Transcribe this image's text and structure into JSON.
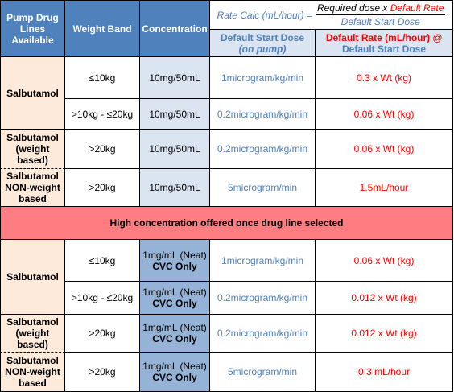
{
  "header": {
    "drug_lines": "Pump Drug Lines Available",
    "weight_band": "Weight Band",
    "concentration": "Concentration",
    "rate_calc_prefix": "Rate Calc (mL/hour) =",
    "rate_calc_numerator": "Required dose x",
    "rate_calc_numerator_red": "Default Rate",
    "rate_calc_denominator": "Default Start Dose",
    "default_start_dose": "Default Start Dose",
    "default_start_dose_note": "(on pump)",
    "default_rate_line1": "Default Rate (mL/hour) @",
    "default_rate_line2": "Default Start Dose"
  },
  "sections": [
    {
      "rows": [
        {
          "drug": "Salbutamol",
          "weight": "≤10kg",
          "conc": "10mg/50mL",
          "dose": "1microgram/kg/min",
          "rate": "0.3 x Wt (kg)"
        },
        {
          "drug": "",
          "weight": ">10kg - ≤20kg",
          "conc": "10mg/50mL",
          "dose": "0.2microgram/kg/min",
          "rate": "0.06 x Wt (kg)"
        },
        {
          "drug": "Salbutamol (weight based)",
          "weight": ">20kg",
          "conc": "10mg/50mL",
          "dose": "0.2microgram/kg/min",
          "rate": "0.06 x Wt (kg)"
        },
        {
          "drug": "Salbutamol NON-weight based",
          "weight": ">20kg",
          "conc": "10mg/50mL",
          "dose": "5microgram/min",
          "rate": "1.5mL/hour"
        }
      ]
    },
    {
      "banner": "High concentration offered once drug line selected"
    },
    {
      "rows": [
        {
          "drug": "Salbutamol",
          "weight": "≤10kg",
          "conc1": "1mg/mL (Neat)",
          "conc2": "CVC Only",
          "dose": "1microgram/kg/min",
          "rate": "0.06 x Wt (kg)"
        },
        {
          "drug": "",
          "weight": ">10kg - ≤20kg",
          "conc1": "1mg/mL (Neat)",
          "conc2": "CVC Only",
          "dose": "0.2microgram/kg/min",
          "rate": "0.012 x Wt (kg)"
        },
        {
          "drug": "Salbutamol (weight based)",
          "weight": ">20kg",
          "conc1": "1mg/mL (Neat)",
          "conc2": "CVC Only",
          "dose": "0.2microgram/kg/min",
          "rate": "0.012 x Wt (kg)"
        },
        {
          "drug": "Salbutamol NON-weight based",
          "weight": ">20kg",
          "conc1": "1mg/mL (Neat)",
          "conc2": "CVC Only",
          "dose": "5microgram/min",
          "rate": "0.3 mL/hour"
        }
      ]
    }
  ],
  "colors": {
    "header_bg": "#4f81bd",
    "subheader_bg": "#dbe5f1",
    "drug_bg": "#fdeada",
    "conc_bg": "#dbe5f1",
    "conc_neat_bg": "#95b3d7",
    "banner_bg": "#ff7c80",
    "dose_text": "#4f81bd",
    "rate_text": "#ff0000"
  }
}
